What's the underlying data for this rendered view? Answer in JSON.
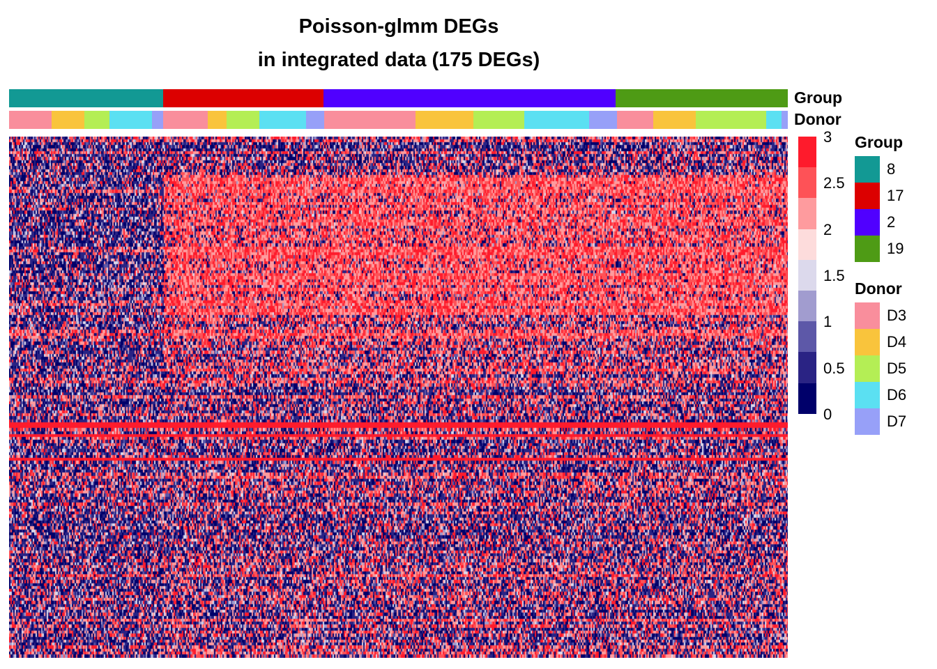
{
  "chart_data": {
    "type": "heatmap",
    "title": "Poisson-glmm DEGs",
    "subtitle": "in integrated data (175 DEGs)",
    "n_genes": 175,
    "annotations": {
      "group": {
        "label": "Group",
        "segments": [
          {
            "level": "8",
            "fraction": 0.198
          },
          {
            "level": "17",
            "fraction": 0.206
          },
          {
            "level": "2",
            "fraction": 0.375
          },
          {
            "level": "19",
            "fraction": 0.221
          }
        ]
      },
      "donor": {
        "label": "Donor",
        "segments": [
          {
            "level": "D3",
            "fraction": 0.055
          },
          {
            "level": "D4",
            "fraction": 0.042
          },
          {
            "level": "D5",
            "fraction": 0.032
          },
          {
            "level": "D6",
            "fraction": 0.055
          },
          {
            "level": "D7",
            "fraction": 0.014
          },
          {
            "level": "D3",
            "fraction": 0.057
          },
          {
            "level": "D4",
            "fraction": 0.024
          },
          {
            "level": "D5",
            "fraction": 0.042
          },
          {
            "level": "D6",
            "fraction": 0.06
          },
          {
            "level": "D7",
            "fraction": 0.023
          },
          {
            "level": "D3",
            "fraction": 0.117
          },
          {
            "level": "D4",
            "fraction": 0.074
          },
          {
            "level": "D5",
            "fraction": 0.065
          },
          {
            "level": "D6",
            "fraction": 0.083
          },
          {
            "level": "D7",
            "fraction": 0.036
          },
          {
            "level": "D3",
            "fraction": 0.047
          },
          {
            "level": "D4",
            "fraction": 0.055
          },
          {
            "level": "D5",
            "fraction": 0.09
          },
          {
            "level": "D6",
            "fraction": 0.02
          },
          {
            "level": "D7",
            "fraction": 0.009
          }
        ]
      }
    },
    "color_scale": {
      "min": 0,
      "max": 3,
      "ticks": [
        "3",
        "2.5",
        "2",
        "1.5",
        "1",
        "0.5",
        "0"
      ],
      "colors": [
        "#fe1b2c",
        "#fe5257",
        "#fe9b9e",
        "#fddcdc",
        "#dcd9ec",
        "#a19ccf",
        "#5d58a8",
        "#2a2384",
        "#00006a"
      ]
    },
    "legends": {
      "group": {
        "title": "Group",
        "items": [
          {
            "label": "8",
            "color": "#129994"
          },
          {
            "label": "17",
            "color": "#dc0000"
          },
          {
            "label": "2",
            "color": "#5000ff"
          },
          {
            "label": "19",
            "color": "#4e9b15"
          }
        ]
      },
      "donor": {
        "title": "Donor",
        "items": [
          {
            "label": "D3",
            "color": "#f98e9c"
          },
          {
            "label": "D4",
            "color": "#f9c43c"
          },
          {
            "label": "D5",
            "color": "#b4ee55"
          },
          {
            "label": "D6",
            "color": "#5be0f2"
          },
          {
            "label": "D7",
            "color": "#97a0f8"
          }
        ]
      }
    }
  }
}
